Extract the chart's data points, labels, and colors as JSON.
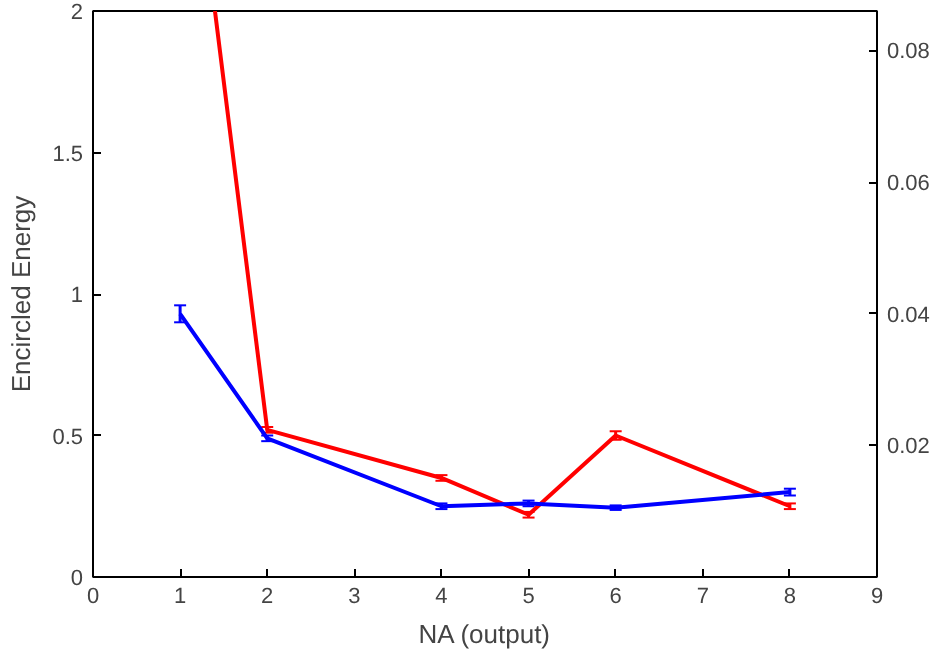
{
  "chart_data": {
    "type": "line",
    "xlabel": "NA (output)",
    "ylabel": "Encircled Energy",
    "xlim": [
      0,
      9
    ],
    "xticks": [
      0,
      1,
      2,
      3,
      4,
      5,
      6,
      7,
      8,
      9
    ],
    "ylim": [
      0,
      2
    ],
    "yticks": [
      0,
      0.5,
      1,
      1.5,
      2
    ],
    "y2lim": [
      0,
      0.086
    ],
    "y2ticks": [
      0.02,
      0.04,
      0.06,
      0.08
    ],
    "grid": false,
    "series": [
      {
        "color": "#ff0000",
        "x": [
          1.4,
          2,
          4,
          5,
          6,
          8
        ],
        "values": [
          2.0,
          0.52,
          0.35,
          0.22,
          0.5,
          0.25
        ],
        "errors": [
          null,
          0.01,
          0.01,
          0.01,
          0.015,
          0.01
        ]
      },
      {
        "color": "#0000ff",
        "x": [
          1,
          2,
          4,
          5,
          6,
          8
        ],
        "values": [
          0.93,
          0.49,
          0.25,
          0.26,
          0.245,
          0.3
        ],
        "errors": [
          0.03,
          0.01,
          0.01,
          0.01,
          0.008,
          0.012
        ]
      }
    ]
  }
}
